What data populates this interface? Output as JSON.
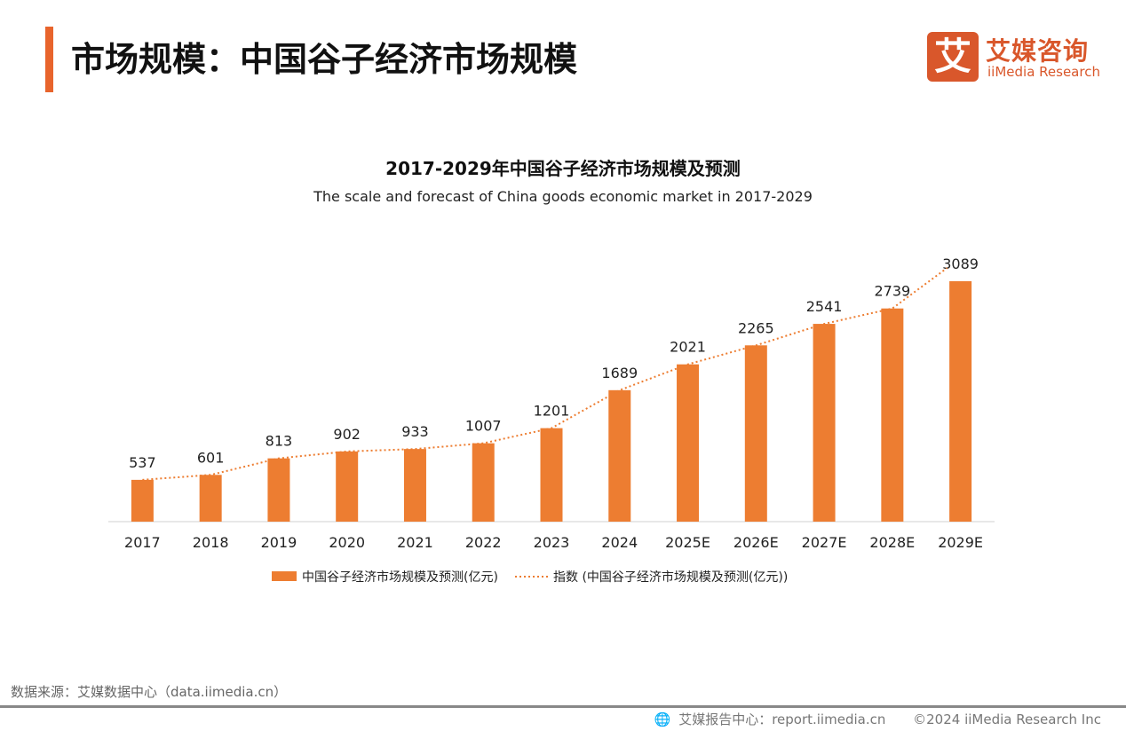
{
  "header": {
    "title": "市场规模：中国谷子经济市场规模",
    "logo_cn": "艾媒咨询",
    "logo_en": "iiMedia Research",
    "logo_mark": "艾"
  },
  "chart_data": {
    "type": "bar",
    "title": "2017-2029年中国谷子经济市场规模及预测",
    "subtitle": "The scale and forecast of China goods economic market in 2017-2029",
    "categories": [
      "2017",
      "2018",
      "2019",
      "2020",
      "2021",
      "2022",
      "2023",
      "2024",
      "2025E",
      "2026E",
      "2027E",
      "2028E",
      "2029E"
    ],
    "series": [
      {
        "name": "中国谷子经济市场规模及预测(亿元)",
        "type": "bar",
        "color": "#ed7d31",
        "values": [
          537,
          601,
          813,
          902,
          933,
          1007,
          1201,
          1689,
          2021,
          2265,
          2541,
          2739,
          3089
        ]
      },
      {
        "name": "指数 (中国谷子经济市场规模及预测(亿元))",
        "type": "line-dotted",
        "color": "#ed7d31",
        "values": [
          537,
          601,
          813,
          902,
          933,
          1007,
          1201,
          1689,
          2021,
          2265,
          2541,
          2739,
          3089
        ]
      }
    ],
    "ylim": [
      0,
      3100
    ],
    "grid": false,
    "legend": "bottom"
  },
  "footer": {
    "source": "数据来源：艾媒数据中心（data.iimedia.cn）",
    "report": "艾媒报告中心：report.iimedia.cn",
    "copyright": "©2024  iiMedia Research Inc"
  }
}
